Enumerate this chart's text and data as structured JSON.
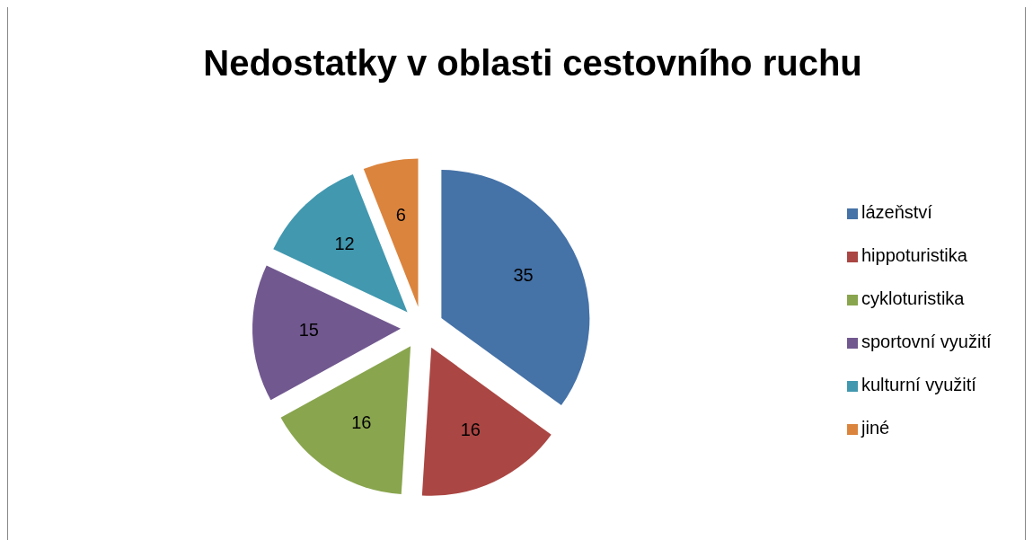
{
  "chart_data": {
    "type": "pie",
    "title": "Nedostatky v oblasti cestovního ruchu",
    "categories": [
      "lázeňství",
      "hippoturistika",
      "cykloturistika",
      "sportovní využití",
      "kulturní využití",
      "jiné"
    ],
    "values": [
      35,
      16,
      16,
      15,
      12,
      6
    ],
    "colors": [
      "#4572a7",
      "#aa4643",
      "#89a54e",
      "#71588f",
      "#4198af",
      "#db843d"
    ],
    "data_labels": true,
    "legend": "right"
  }
}
